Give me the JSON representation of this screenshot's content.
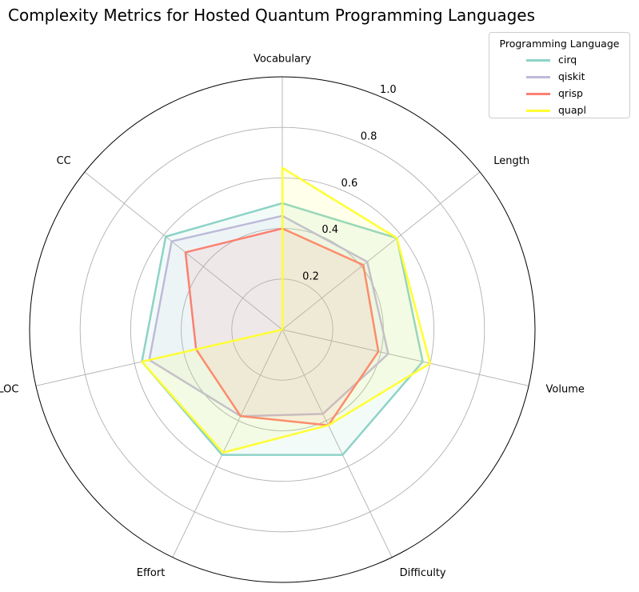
{
  "chart_data": {
    "type": "radar",
    "title": "Complexity Metrics for Hosted Quantum Programming Languages",
    "categories": [
      "Vocabulary",
      "Length",
      "Volume",
      "Difficulty",
      "Effort",
      "LOC",
      "CC"
    ],
    "rticks": [
      "0.2",
      "0.4",
      "0.6",
      "0.8",
      "1.0"
    ],
    "rlim": [
      0,
      1.0
    ],
    "grid": true,
    "legend": {
      "title": "Programming Language",
      "placement": "top-right"
    },
    "series": [
      {
        "name": "cirq",
        "color": "#8dd3c7",
        "values": [
          0.5,
          0.58,
          0.57,
          0.55,
          0.55,
          0.57,
          0.59
        ]
      },
      {
        "name": "qiskit",
        "color": "#bebada",
        "values": [
          0.45,
          0.43,
          0.43,
          0.37,
          0.38,
          0.54,
          0.56
        ]
      },
      {
        "name": "qrisp",
        "color": "#fb8072",
        "values": [
          0.4,
          0.41,
          0.39,
          0.42,
          0.38,
          0.35,
          0.49
        ]
      },
      {
        "name": "quapl",
        "color": "#ffff33",
        "values": [
          0.64,
          0.58,
          0.6,
          0.42,
          0.54,
          0.57,
          0.0
        ]
      }
    ]
  }
}
